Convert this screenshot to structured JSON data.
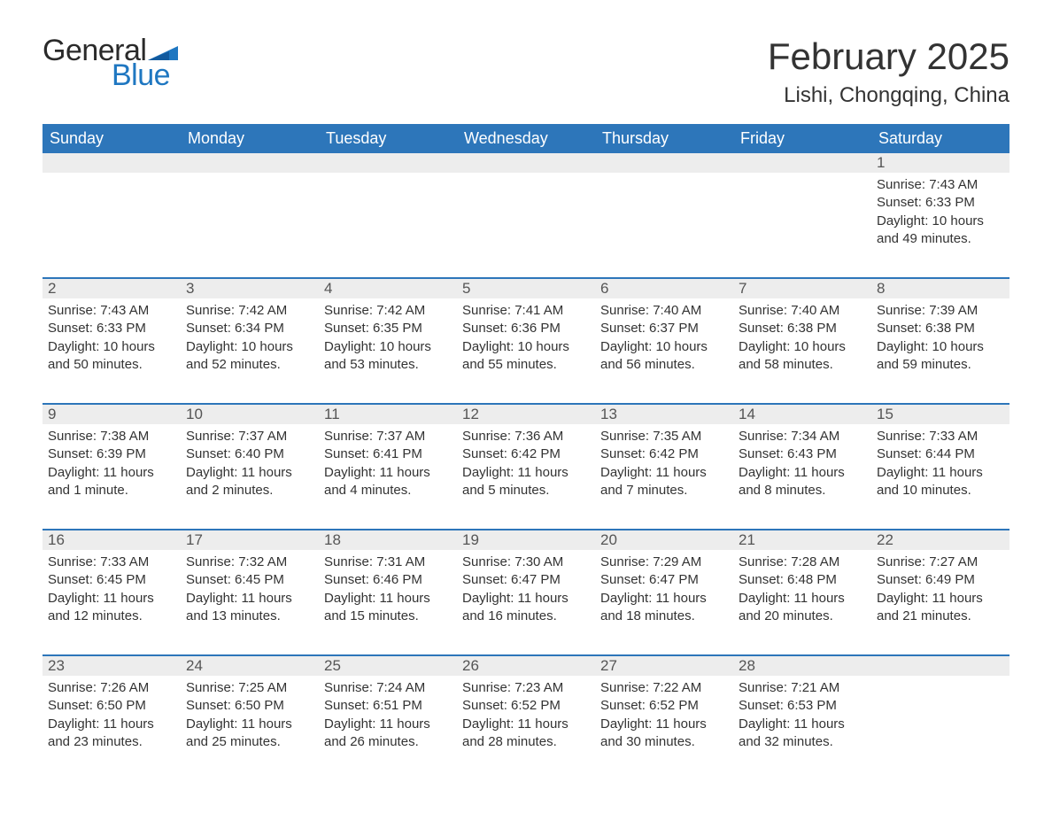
{
  "logo": {
    "part1": "General",
    "part2": "Blue",
    "flag_color": "#1f77c1"
  },
  "title": "February 2025",
  "location": "Lishi, Chongqing, China",
  "colors": {
    "header_bg": "#2d76ba",
    "header_fg": "#ffffff",
    "row_accent": "#2d76ba",
    "day_band": "#ededed",
    "text": "#333333",
    "logo_blue": "#1f77c1",
    "background": "#ffffff"
  },
  "typography": {
    "title_fontsize": 42,
    "location_fontsize": 24,
    "dow_fontsize": 18,
    "daynum_fontsize": 17,
    "body_fontsize": 15
  },
  "days_of_week": [
    "Sunday",
    "Monday",
    "Tuesday",
    "Wednesday",
    "Thursday",
    "Friday",
    "Saturday"
  ],
  "weeks": [
    [
      {
        "n": "",
        "sunrise": "",
        "sunset": "",
        "daylight": ""
      },
      {
        "n": "",
        "sunrise": "",
        "sunset": "",
        "daylight": ""
      },
      {
        "n": "",
        "sunrise": "",
        "sunset": "",
        "daylight": ""
      },
      {
        "n": "",
        "sunrise": "",
        "sunset": "",
        "daylight": ""
      },
      {
        "n": "",
        "sunrise": "",
        "sunset": "",
        "daylight": ""
      },
      {
        "n": "",
        "sunrise": "",
        "sunset": "",
        "daylight": ""
      },
      {
        "n": "1",
        "sunrise": "Sunrise: 7:43 AM",
        "sunset": "Sunset: 6:33 PM",
        "daylight": "Daylight: 10 hours and 49 minutes."
      }
    ],
    [
      {
        "n": "2",
        "sunrise": "Sunrise: 7:43 AM",
        "sunset": "Sunset: 6:33 PM",
        "daylight": "Daylight: 10 hours and 50 minutes."
      },
      {
        "n": "3",
        "sunrise": "Sunrise: 7:42 AM",
        "sunset": "Sunset: 6:34 PM",
        "daylight": "Daylight: 10 hours and 52 minutes."
      },
      {
        "n": "4",
        "sunrise": "Sunrise: 7:42 AM",
        "sunset": "Sunset: 6:35 PM",
        "daylight": "Daylight: 10 hours and 53 minutes."
      },
      {
        "n": "5",
        "sunrise": "Sunrise: 7:41 AM",
        "sunset": "Sunset: 6:36 PM",
        "daylight": "Daylight: 10 hours and 55 minutes."
      },
      {
        "n": "6",
        "sunrise": "Sunrise: 7:40 AM",
        "sunset": "Sunset: 6:37 PM",
        "daylight": "Daylight: 10 hours and 56 minutes."
      },
      {
        "n": "7",
        "sunrise": "Sunrise: 7:40 AM",
        "sunset": "Sunset: 6:38 PM",
        "daylight": "Daylight: 10 hours and 58 minutes."
      },
      {
        "n": "8",
        "sunrise": "Sunrise: 7:39 AM",
        "sunset": "Sunset: 6:38 PM",
        "daylight": "Daylight: 10 hours and 59 minutes."
      }
    ],
    [
      {
        "n": "9",
        "sunrise": "Sunrise: 7:38 AM",
        "sunset": "Sunset: 6:39 PM",
        "daylight": "Daylight: 11 hours and 1 minute."
      },
      {
        "n": "10",
        "sunrise": "Sunrise: 7:37 AM",
        "sunset": "Sunset: 6:40 PM",
        "daylight": "Daylight: 11 hours and 2 minutes."
      },
      {
        "n": "11",
        "sunrise": "Sunrise: 7:37 AM",
        "sunset": "Sunset: 6:41 PM",
        "daylight": "Daylight: 11 hours and 4 minutes."
      },
      {
        "n": "12",
        "sunrise": "Sunrise: 7:36 AM",
        "sunset": "Sunset: 6:42 PM",
        "daylight": "Daylight: 11 hours and 5 minutes."
      },
      {
        "n": "13",
        "sunrise": "Sunrise: 7:35 AM",
        "sunset": "Sunset: 6:42 PM",
        "daylight": "Daylight: 11 hours and 7 minutes."
      },
      {
        "n": "14",
        "sunrise": "Sunrise: 7:34 AM",
        "sunset": "Sunset: 6:43 PM",
        "daylight": "Daylight: 11 hours and 8 minutes."
      },
      {
        "n": "15",
        "sunrise": "Sunrise: 7:33 AM",
        "sunset": "Sunset: 6:44 PM",
        "daylight": "Daylight: 11 hours and 10 minutes."
      }
    ],
    [
      {
        "n": "16",
        "sunrise": "Sunrise: 7:33 AM",
        "sunset": "Sunset: 6:45 PM",
        "daylight": "Daylight: 11 hours and 12 minutes."
      },
      {
        "n": "17",
        "sunrise": "Sunrise: 7:32 AM",
        "sunset": "Sunset: 6:45 PM",
        "daylight": "Daylight: 11 hours and 13 minutes."
      },
      {
        "n": "18",
        "sunrise": "Sunrise: 7:31 AM",
        "sunset": "Sunset: 6:46 PM",
        "daylight": "Daylight: 11 hours and 15 minutes."
      },
      {
        "n": "19",
        "sunrise": "Sunrise: 7:30 AM",
        "sunset": "Sunset: 6:47 PM",
        "daylight": "Daylight: 11 hours and 16 minutes."
      },
      {
        "n": "20",
        "sunrise": "Sunrise: 7:29 AM",
        "sunset": "Sunset: 6:47 PM",
        "daylight": "Daylight: 11 hours and 18 minutes."
      },
      {
        "n": "21",
        "sunrise": "Sunrise: 7:28 AM",
        "sunset": "Sunset: 6:48 PM",
        "daylight": "Daylight: 11 hours and 20 minutes."
      },
      {
        "n": "22",
        "sunrise": "Sunrise: 7:27 AM",
        "sunset": "Sunset: 6:49 PM",
        "daylight": "Daylight: 11 hours and 21 minutes."
      }
    ],
    [
      {
        "n": "23",
        "sunrise": "Sunrise: 7:26 AM",
        "sunset": "Sunset: 6:50 PM",
        "daylight": "Daylight: 11 hours and 23 minutes."
      },
      {
        "n": "24",
        "sunrise": "Sunrise: 7:25 AM",
        "sunset": "Sunset: 6:50 PM",
        "daylight": "Daylight: 11 hours and 25 minutes."
      },
      {
        "n": "25",
        "sunrise": "Sunrise: 7:24 AM",
        "sunset": "Sunset: 6:51 PM",
        "daylight": "Daylight: 11 hours and 26 minutes."
      },
      {
        "n": "26",
        "sunrise": "Sunrise: 7:23 AM",
        "sunset": "Sunset: 6:52 PM",
        "daylight": "Daylight: 11 hours and 28 minutes."
      },
      {
        "n": "27",
        "sunrise": "Sunrise: 7:22 AM",
        "sunset": "Sunset: 6:52 PM",
        "daylight": "Daylight: 11 hours and 30 minutes."
      },
      {
        "n": "28",
        "sunrise": "Sunrise: 7:21 AM",
        "sunset": "Sunset: 6:53 PM",
        "daylight": "Daylight: 11 hours and 32 minutes."
      },
      {
        "n": "",
        "sunrise": "",
        "sunset": "",
        "daylight": ""
      }
    ]
  ]
}
